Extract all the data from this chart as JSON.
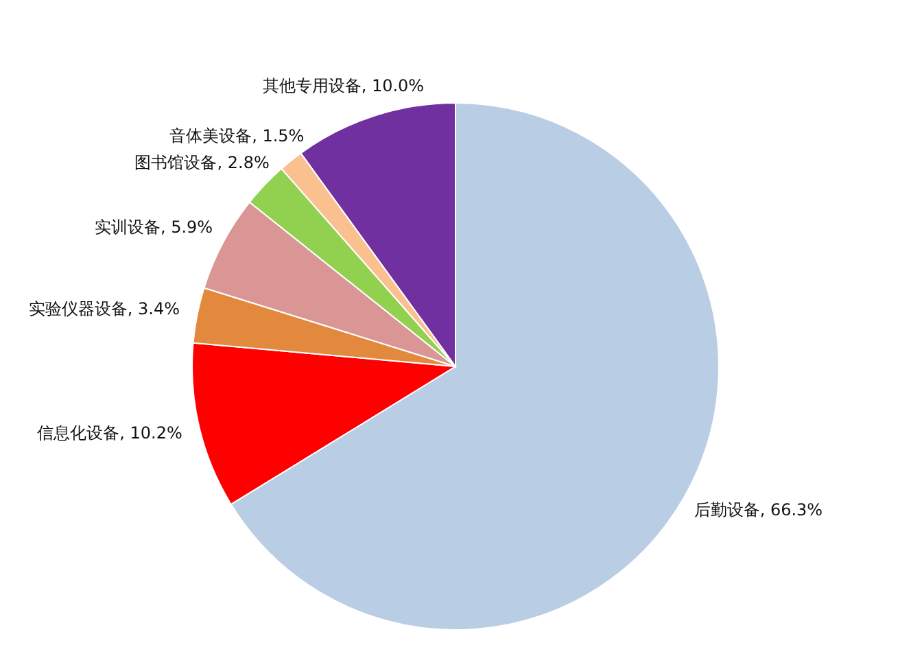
{
  "chart_data": {
    "type": "pie",
    "categories": [
      "后勤设备",
      "信息化设备",
      "实验仪器设备",
      "实训设备",
      "图书馆设备",
      "音体美设备",
      "其他专用设备"
    ],
    "values": [
      66.3,
      10.2,
      3.4,
      5.9,
      2.8,
      1.5,
      10.0
    ],
    "colors": [
      "#b9cde5",
      "#ff0000",
      "#e3893d",
      "#d99694",
      "#92d050",
      "#fac090",
      "#7030a0"
    ],
    "value_labels": [
      "66.3%",
      "10.2%",
      "3.4%",
      "5.9%",
      "2.8%",
      "1.5%",
      "10.0%"
    ]
  }
}
